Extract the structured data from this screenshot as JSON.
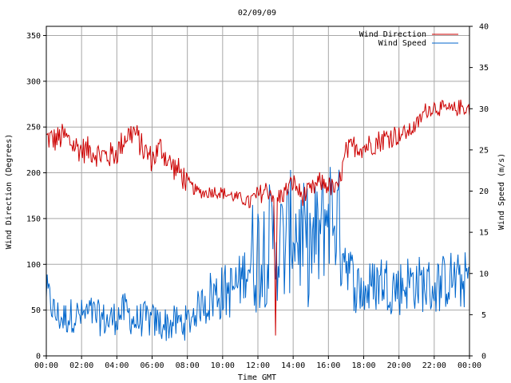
{
  "chart_data": {
    "type": "line",
    "title": "02/09/09",
    "xlabel": "Time GMT",
    "ylabel_left": "Wind Direction (Degrees)",
    "ylabel_right": "Wind Speed (m/s)",
    "xlim_hours": [
      0,
      24
    ],
    "ylim_left": [
      0,
      360
    ],
    "ylim_right": [
      0,
      40
    ],
    "x_ticks": [
      "00:00",
      "02:00",
      "04:00",
      "06:00",
      "08:00",
      "10:00",
      "12:00",
      "14:00",
      "16:00",
      "18:00",
      "20:00",
      "22:00",
      "00:00"
    ],
    "y_ticks_left": [
      "0",
      "50",
      "100",
      "150",
      "200",
      "250",
      "300",
      "350"
    ],
    "y_ticks_right": [
      "0",
      "5",
      "10",
      "15",
      "20",
      "25",
      "30",
      "35",
      "40"
    ],
    "grid": true,
    "legend_position": "top-right",
    "legend": [
      "Wind Direction",
      "Wind Speed"
    ],
    "series_colors": {
      "wind_direction": "#cc0000",
      "wind_speed": "#0066cc"
    },
    "series": [
      {
        "name": "Wind Direction",
        "axis": "left",
        "x_hours": [
          0,
          0.5,
          1,
          1.5,
          2,
          2.5,
          3,
          3.5,
          4,
          4.5,
          5,
          5.5,
          6,
          6.5,
          7,
          7.5,
          8,
          8.5,
          9,
          9.5,
          10,
          10.5,
          11,
          11.5,
          12,
          12.5,
          12.9,
          13,
          13.1,
          13.5,
          14,
          14.5,
          15,
          15.5,
          16,
          16.5,
          17,
          17.5,
          18,
          18.5,
          19,
          19.5,
          20,
          20.5,
          21,
          21.5,
          22,
          22.5,
          23,
          23.5,
          24
        ],
        "values": [
          238,
          236,
          240,
          231,
          225,
          225,
          220,
          218,
          222,
          240,
          245,
          225,
          215,
          228,
          210,
          202,
          190,
          180,
          178,
          180,
          178,
          175,
          172,
          168,
          175,
          182,
          176,
          20,
          172,
          178,
          190,
          174,
          180,
          190,
          186,
          180,
          222,
          230,
          228,
          232,
          236,
          240,
          242,
          244,
          252,
          268,
          272,
          270,
          268,
          272,
          270
        ]
      },
      {
        "name": "Wind Speed",
        "axis": "right",
        "x_hours": [
          0,
          0.5,
          1,
          1.5,
          2,
          2.5,
          3,
          3.5,
          4,
          4.5,
          5,
          5.5,
          6,
          6.5,
          7,
          7.5,
          8,
          8.5,
          9,
          9.5,
          10,
          10.5,
          11,
          11.5,
          12,
          12.5,
          13,
          13.5,
          14,
          14.5,
          15,
          15.5,
          16,
          16.5,
          17,
          17.5,
          18,
          18.5,
          19,
          19.5,
          20,
          20.5,
          21,
          21.5,
          22,
          22.5,
          23,
          23.5,
          24
        ],
        "values": [
          8,
          5,
          4.5,
          5,
          4.8,
          5.2,
          4.6,
          4.2,
          4.8,
          5.6,
          4.1,
          4.5,
          4.2,
          3.9,
          3.8,
          4.1,
          4,
          5.5,
          6.8,
          7.4,
          7.7,
          8,
          9,
          11.5,
          12.5,
          13.5,
          14,
          13,
          16,
          13.8,
          13,
          14.5,
          18,
          16.5,
          12,
          8.5,
          7.8,
          8.3,
          9.3,
          8.6,
          8.2,
          9,
          8.9,
          8.6,
          8.2,
          8.9,
          9.5,
          8.8,
          9.7
        ]
      }
    ]
  }
}
